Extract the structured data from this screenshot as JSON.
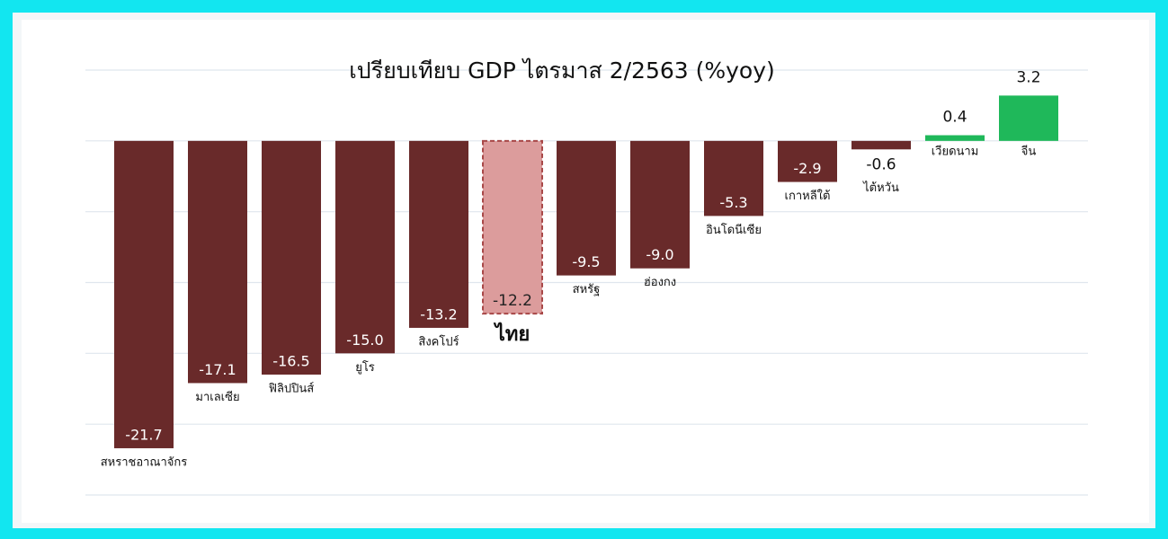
{
  "chart_data": {
    "type": "bar",
    "title": "เปรียบเทียบ GDP ไตรมาส 2/2563 (%yoy)",
    "categories": [
      "สหราชอาณาจักร",
      "มาเลเซีย",
      "ฟิลิปปินส์",
      "ยูโร",
      "สิงคโปร์",
      "ไทย",
      "สหรัฐ",
      "ฮ่องกง",
      "อินโดนีเซีย",
      "เกาหลีใต้",
      "ไต้หวัน",
      "เวียดนาม",
      "จีน"
    ],
    "values": [
      -21.7,
      -17.1,
      -16.5,
      -15.0,
      -13.2,
      -12.2,
      -9.5,
      -9.0,
      -5.3,
      -2.9,
      -0.6,
      0.4,
      3.2
    ],
    "value_labels": [
      "-21.7",
      "-17.1",
      "-16.5",
      "-15.0",
      "-13.2",
      "-12.2",
      "-9.5",
      "-9.0",
      "-5.3",
      "-2.9",
      "-0.6",
      "0.4",
      "3.2"
    ],
    "colors": [
      "#692a2a",
      "#692a2a",
      "#692a2a",
      "#692a2a",
      "#692a2a",
      "#dc9c9c",
      "#692a2a",
      "#692a2a",
      "#692a2a",
      "#692a2a",
      "#692a2a",
      "#1fb85a",
      "#1fb85a"
    ],
    "highlight": 5,
    "ylim": [
      -25,
      5
    ],
    "yticks": [
      -25,
      -20,
      -15,
      -10,
      -5,
      0,
      5
    ],
    "grid": true
  }
}
